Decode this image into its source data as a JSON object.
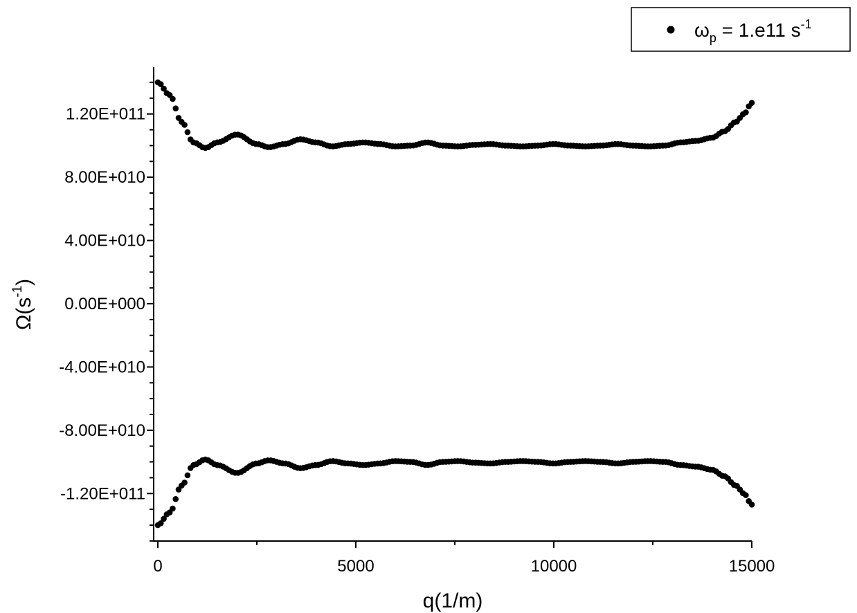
{
  "chart_data": {
    "type": "scatter",
    "xlabel": "q(1/m)",
    "ylabel": {
      "base": "Ω(s",
      "sup": "-1",
      "close": ")"
    },
    "xlim": [
      0,
      15000
    ],
    "ylim": [
      -150000000000.0,
      150000000000.0
    ],
    "x_ticks": [
      0,
      5000,
      10000,
      15000
    ],
    "x_tick_labels": [
      "0",
      "5000",
      "10000",
      "15000"
    ],
    "y_ticks": [
      120000000000.0,
      80000000000.0,
      40000000000.0,
      0,
      -40000000000.0,
      -80000000000.0,
      -120000000000.0
    ],
    "y_tick_labels": [
      "1.20E+011",
      "8.00E+010",
      "4.00E+010",
      "0.00E+000",
      "-4.00E+010",
      "-8.00E+010",
      "-1.20E+011"
    ],
    "grid": false,
    "legend": {
      "placement": "top-right",
      "symbol": "ω",
      "sub": "p",
      "eq": " = 1.e11 s",
      "sup": "-1"
    },
    "series": [
      {
        "marker": "filled-circle",
        "color": "#000000",
        "x": [
          0,
          300,
          600,
          900,
          1200,
          1500,
          2000,
          2500,
          2800,
          3200,
          3600,
          4000,
          4400,
          4800,
          5200,
          5600,
          6000,
          6400,
          6800,
          7200,
          7600,
          8000,
          8400,
          8800,
          9200,
          9600,
          10000,
          10400,
          10800,
          11200,
          11600,
          12000,
          12400,
          12800,
          13200,
          13600,
          14000,
          14300,
          14600,
          14800,
          15000
        ],
        "upper": [
          140000000000.0,
          132000000000.0,
          115000000000.0,
          102000000000.0,
          98500000000.0,
          102000000000.0,
          107000000000.0,
          101000000000.0,
          99000000000.0,
          101000000000.0,
          104000000000.0,
          102000000000.0,
          99500000000.0,
          101000000000.0,
          102000000000.0,
          101000000000.0,
          99500000000.0,
          100000000000.0,
          102000000000.0,
          100000000000.0,
          99500000000.0,
          100500000000.0,
          101000000000.0,
          100000000000.0,
          99500000000.0,
          100000000000.0,
          101000000000.0,
          100000000000.0,
          99500000000.0,
          100000000000.0,
          101000000000.0,
          100000000000.0,
          99500000000.0,
          100000000000.0,
          102000000000.0,
          103000000000.0,
          105000000000.0,
          109000000000.0,
          115000000000.0,
          120000000000.0,
          127000000000.0
        ],
        "lower": [
          -140000000000.0,
          -132000000000.0,
          -115000000000.0,
          -102000000000.0,
          -98500000000.0,
          -102000000000.0,
          -107000000000.0,
          -101000000000.0,
          -99000000000.0,
          -101000000000.0,
          -104000000000.0,
          -102000000000.0,
          -99500000000.0,
          -101000000000.0,
          -102000000000.0,
          -101000000000.0,
          -99500000000.0,
          -100000000000.0,
          -102000000000.0,
          -100000000000.0,
          -99500000000.0,
          -100500000000.0,
          -101000000000.0,
          -100000000000.0,
          -99500000000.0,
          -100000000000.0,
          -101000000000.0,
          -100000000000.0,
          -99500000000.0,
          -100000000000.0,
          -101000000000.0,
          -100000000000.0,
          -99500000000.0,
          -100000000000.0,
          -102000000000.0,
          -103000000000.0,
          -105000000000.0,
          -109000000000.0,
          -115000000000.0,
          -120000000000.0,
          -127000000000.0
        ]
      }
    ]
  }
}
